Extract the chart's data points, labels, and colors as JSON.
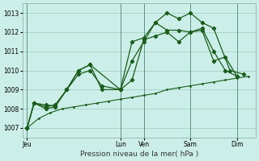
{
  "title": "Pression niveau de la mer( hPa )",
  "background_color": "#cceee8",
  "grid_color": "#99ccbb",
  "line_color": "#1a5c1a",
  "ylim": [
    1006.5,
    1013.5
  ],
  "yticks": [
    1007,
    1008,
    1009,
    1010,
    1011,
    1012,
    1013
  ],
  "x_day_labels": [
    "Jeu",
    "Lun",
    "Ven",
    "Sam",
    "Dim"
  ],
  "x_day_positions": [
    0,
    4,
    5,
    7,
    9
  ],
  "xlim": [
    -0.2,
    9.8
  ],
  "series1_x": [
    0,
    0.3,
    0.8,
    1.2,
    1.7,
    2.2,
    2.7,
    3.2,
    4.0,
    4.5,
    5.0,
    5.5,
    6.0,
    6.5,
    7.0,
    7.5,
    8.0,
    8.5,
    9.0
  ],
  "series1_y": [
    1007.0,
    1008.3,
    1008.2,
    1008.15,
    1009.0,
    1010.0,
    1010.3,
    1009.0,
    1009.0,
    1011.5,
    1011.7,
    1012.5,
    1012.1,
    1012.1,
    1012.0,
    1012.2,
    1011.0,
    1010.0,
    1009.7
  ],
  "series2_x": [
    0,
    0.3,
    0.8,
    1.2,
    1.7,
    2.2,
    2.7,
    4.0,
    4.5,
    5.0,
    5.5,
    6.0,
    6.5,
    7.0,
    7.5,
    8.0,
    8.7,
    9.3
  ],
  "series2_y": [
    1007.0,
    1008.3,
    1008.1,
    1008.2,
    1009.0,
    1010.0,
    1010.3,
    1009.0,
    1010.5,
    1011.5,
    1012.5,
    1013.0,
    1012.7,
    1013.0,
    1012.5,
    1012.2,
    1010.0,
    1009.8
  ],
  "series3_x": [
    0,
    0.3,
    0.8,
    1.2,
    1.7,
    2.2,
    2.7,
    3.2,
    4.0,
    4.5,
    5.0,
    5.5,
    6.0,
    6.5,
    7.0,
    7.5,
    8.0,
    8.5,
    9.0
  ],
  "series3_y": [
    1007.0,
    1008.3,
    1008.0,
    1008.1,
    1009.0,
    1009.8,
    1010.0,
    1009.2,
    1009.0,
    1009.5,
    1011.6,
    1011.8,
    1012.0,
    1011.5,
    1012.0,
    1012.1,
    1010.5,
    1010.7,
    1009.7
  ],
  "series4_x": [
    0,
    0.5,
    1.0,
    1.5,
    2.0,
    2.5,
    3.0,
    3.5,
    4.0,
    4.5,
    5.0,
    5.5,
    6.0,
    6.5,
    7.0,
    7.5,
    8.0,
    8.5,
    9.0,
    9.5
  ],
  "series4_y": [
    1007.0,
    1007.5,
    1007.8,
    1008.0,
    1008.1,
    1008.2,
    1008.3,
    1008.4,
    1008.5,
    1008.6,
    1008.7,
    1008.8,
    1009.0,
    1009.1,
    1009.2,
    1009.3,
    1009.4,
    1009.5,
    1009.6,
    1009.7
  ]
}
